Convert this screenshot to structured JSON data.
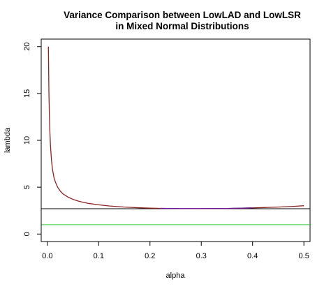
{
  "chart_data": {
    "type": "line",
    "title": [
      "Variance Comparison between LowLAD and LowLSR",
      "in Mixed Normal Distributions"
    ],
    "xlabel": "alpha",
    "ylabel": "lambda",
    "xlim": [
      -0.012,
      0.512
    ],
    "ylim": [
      -0.8,
      20.8
    ],
    "xticks": [
      0.0,
      0.1,
      0.2,
      0.3,
      0.4,
      0.5
    ],
    "xtick_labels": [
      "0.0",
      "0.1",
      "0.2",
      "0.3",
      "0.4",
      "0.5"
    ],
    "yticks": [
      0,
      5,
      10,
      15,
      20
    ],
    "ytick_labels": [
      "0",
      "5",
      "10",
      "15",
      "20"
    ],
    "grid": false,
    "series": [
      {
        "color": "#8b2323",
        "x": [
          0.002,
          0.003,
          0.004,
          0.005,
          0.006,
          0.008,
          0.01,
          0.013,
          0.016,
          0.02,
          0.025,
          0.03,
          0.04,
          0.05,
          0.06,
          0.07,
          0.08,
          0.1,
          0.12,
          0.15,
          0.18,
          0.2,
          0.22,
          0.25,
          0.28,
          0.3,
          0.33,
          0.35,
          0.38,
          0.4,
          0.43,
          0.45,
          0.48,
          0.5
        ],
        "y": [
          20.0,
          15.2,
          12.6,
          10.8,
          9.5,
          7.9,
          6.9,
          6.0,
          5.5,
          5.0,
          4.6,
          4.3,
          3.95,
          3.7,
          3.52,
          3.38,
          3.27,
          3.12,
          3.0,
          2.88,
          2.8,
          2.76,
          2.74,
          2.72,
          2.71,
          2.71,
          2.72,
          2.73,
          2.76,
          2.79,
          2.84,
          2.88,
          2.95,
          3.02
        ]
      },
      {
        "color": "#6a1b9a",
        "x": [
          0.22,
          0.26,
          0.35,
          0.4
        ],
        "y": [
          2.74,
          2.72,
          2.73,
          2.79
        ]
      }
    ],
    "hlines": [
      {
        "y": 2.7,
        "color": "#000000"
      },
      {
        "y": 1.0,
        "color": "#2ecc40"
      }
    ]
  }
}
